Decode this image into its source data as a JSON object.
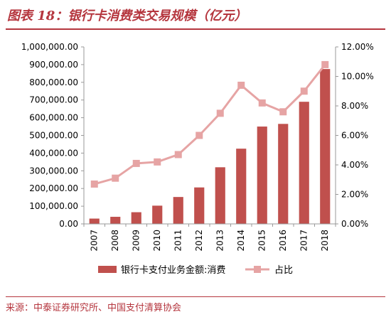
{
  "title": "图表 18：银行卡消费类交易规模（亿元）",
  "source": "来源：中泰证券研究所、中国支付清算协会",
  "colors": {
    "accent": "#b5363e",
    "bar": "#c0504d",
    "line": "#e6a4a4",
    "axis": "#999999"
  },
  "chart_data": {
    "type": "bar",
    "categories": [
      "2007",
      "2008",
      "2009",
      "2010",
      "2011",
      "2012",
      "2013",
      "2014",
      "2015",
      "2016",
      "2017",
      "2018"
    ],
    "series": [
      {
        "name": "银行卡支付业务金额:消费",
        "type": "bar",
        "axis": "left",
        "values": [
          30000,
          40000,
          66000,
          103000,
          152000,
          206000,
          320000,
          425000,
          550000,
          565000,
          690000,
          875000
        ]
      },
      {
        "name": "占比",
        "type": "line",
        "axis": "right",
        "values": [
          2.7,
          3.1,
          4.1,
          4.2,
          4.7,
          6.0,
          7.5,
          9.4,
          8.2,
          7.6,
          9.0,
          10.8
        ]
      }
    ],
    "ylim": [
      0,
      1000000
    ],
    "y2lim": [
      0,
      12
    ],
    "yticks": [
      "0.00",
      "100,000.00",
      "200,000.00",
      "300,000.00",
      "400,000.00",
      "500,000.00",
      "600,000.00",
      "700,000.00",
      "800,000.00",
      "900,000.00",
      "1,000,000.00"
    ],
    "y2ticks": [
      "0.00%",
      "2.00%",
      "4.00%",
      "6.00%",
      "8.00%",
      "10.00%",
      "12.00%"
    ],
    "legend": "bottom"
  }
}
